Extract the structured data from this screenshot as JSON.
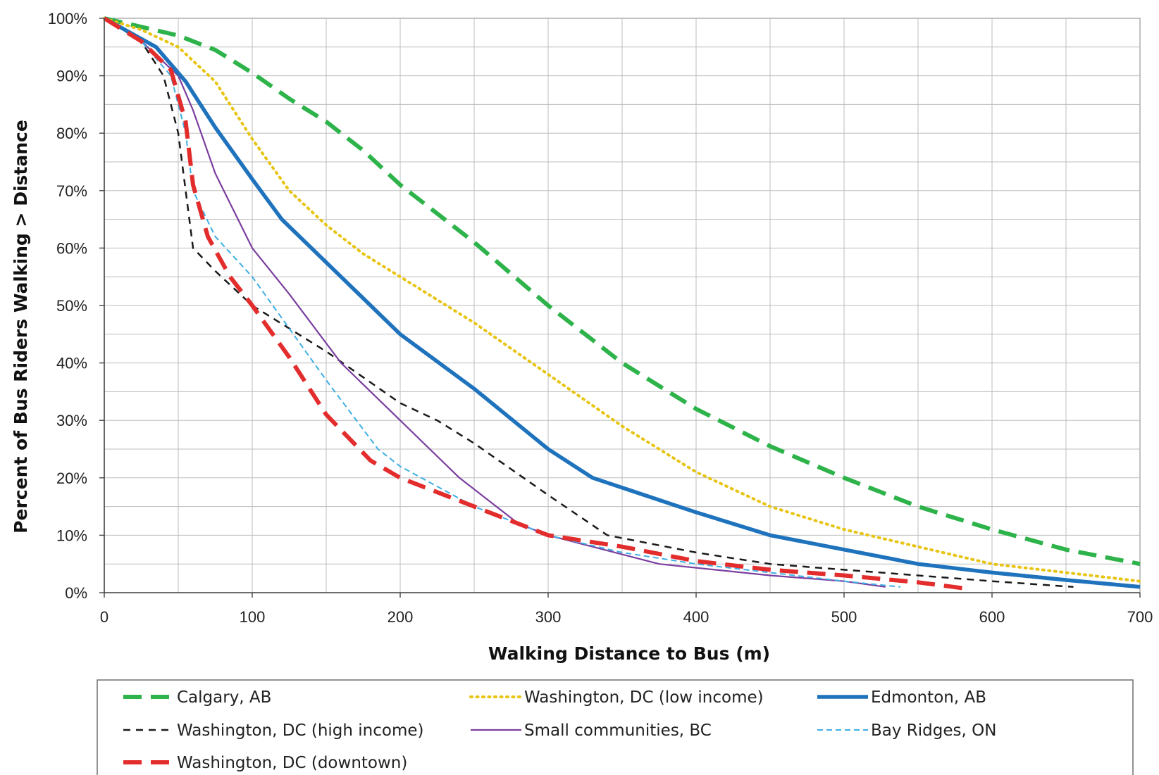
{
  "chart_data": {
    "type": "line",
    "title": "",
    "xlabel": "Walking Distance to Bus (m)",
    "ylabel": "Percent of Bus Riders Walking > Distance",
    "xlim": [
      0,
      700
    ],
    "ylim": [
      0,
      100
    ],
    "x_ticks": [
      0,
      100,
      200,
      300,
      400,
      500,
      600,
      700
    ],
    "x_tick_labels": [
      "0",
      "100",
      "200",
      "300",
      "400",
      "500",
      "600",
      "700"
    ],
    "x_minor_step": 50,
    "y_ticks": [
      0,
      10,
      20,
      30,
      40,
      50,
      60,
      70,
      80,
      90,
      100
    ],
    "y_tick_labels": [
      "0%",
      "10%",
      "20%",
      "30%",
      "40%",
      "50%",
      "60%",
      "70%",
      "80%",
      "90%",
      "100%"
    ],
    "y_minor_step": 5,
    "grid": true,
    "legend_position": "bottom",
    "series": [
      {
        "name": "Calgary, AB",
        "color": "#2db34a",
        "style": "long-dash-thick",
        "x": [
          0,
          25,
          50,
          75,
          100,
          125,
          150,
          175,
          200,
          250,
          300,
          350,
          400,
          450,
          500,
          550,
          600,
          650,
          700
        ],
        "y": [
          100,
          98.5,
          97,
          94.5,
          90.5,
          86,
          82,
          77,
          71,
          61,
          50,
          40,
          32,
          25.5,
          20,
          15,
          11,
          7.5,
          5
        ]
      },
      {
        "name": "Washington, DC (low income)",
        "color": "#e8c412",
        "style": "dotted",
        "x": [
          0,
          25,
          50,
          75,
          100,
          125,
          150,
          175,
          200,
          250,
          300,
          350,
          400,
          450,
          500,
          550,
          600,
          650,
          700
        ],
        "y": [
          100,
          98,
          95,
          89,
          79,
          70,
          64,
          59,
          55,
          47,
          38,
          29,
          21,
          15,
          11,
          8,
          5,
          3.5,
          2
        ]
      },
      {
        "name": "Edmonton, AB",
        "color": "#1f73bd",
        "style": "solid-thick",
        "x": [
          0,
          35,
          55,
          75,
          100,
          120,
          160,
          200,
          250,
          300,
          330,
          400,
          450,
          500,
          550,
          600,
          650,
          700
        ],
        "y": [
          100,
          95,
          89,
          81,
          72,
          65,
          55,
          45,
          35.5,
          25,
          20,
          14,
          10,
          7.5,
          5,
          3.5,
          2.2,
          1
        ]
      },
      {
        "name": "Washington, DC (high income)",
        "color": "#1a1a1a",
        "style": "short-dash",
        "x": [
          0,
          25,
          40,
          50,
          60,
          75,
          100,
          125,
          150,
          200,
          225,
          250,
          300,
          340,
          400,
          450,
          500,
          550,
          600,
          655
        ],
        "y": [
          100,
          96,
          90,
          80,
          60,
          56,
          50,
          46,
          42,
          33,
          30,
          26,
          17,
          10,
          7,
          5,
          4,
          3,
          2,
          1
        ]
      },
      {
        "name": "Small communities, BC",
        "color": "#7b3fa0",
        "style": "solid-thin",
        "x": [
          0,
          25,
          50,
          60,
          75,
          100,
          125,
          160,
          200,
          240,
          280,
          300,
          330,
          375,
          450,
          500,
          528
        ],
        "y": [
          100,
          96,
          90,
          84,
          73,
          60,
          52,
          40,
          30,
          20,
          12,
          10,
          8,
          5,
          3,
          2,
          1
        ]
      },
      {
        "name": "Bay Ridges, ON",
        "color": "#3eaee3",
        "style": "short-dash-thin",
        "x": [
          0,
          25,
          45,
          55,
          60,
          75,
          100,
          125,
          150,
          185,
          200,
          250,
          300,
          350,
          400,
          450,
          500,
          538
        ],
        "y": [
          100,
          96,
          90,
          80,
          70,
          62,
          55,
          46,
          37,
          25,
          22,
          15,
          10,
          7,
          5,
          3.5,
          2,
          1
        ]
      },
      {
        "name": "Washington, DC (downtown)",
        "color": "#e32d2d",
        "style": "long-dash-thick",
        "x": [
          0,
          25,
          45,
          55,
          60,
          70,
          85,
          100,
          125,
          150,
          180,
          200,
          250,
          300,
          350,
          400,
          450,
          500,
          550,
          580
        ],
        "y": [
          100,
          96,
          91,
          82,
          71,
          62,
          55,
          50,
          41,
          31,
          23,
          20,
          15,
          10,
          8,
          5.5,
          4,
          3,
          1.8,
          0.8
        ]
      }
    ]
  }
}
